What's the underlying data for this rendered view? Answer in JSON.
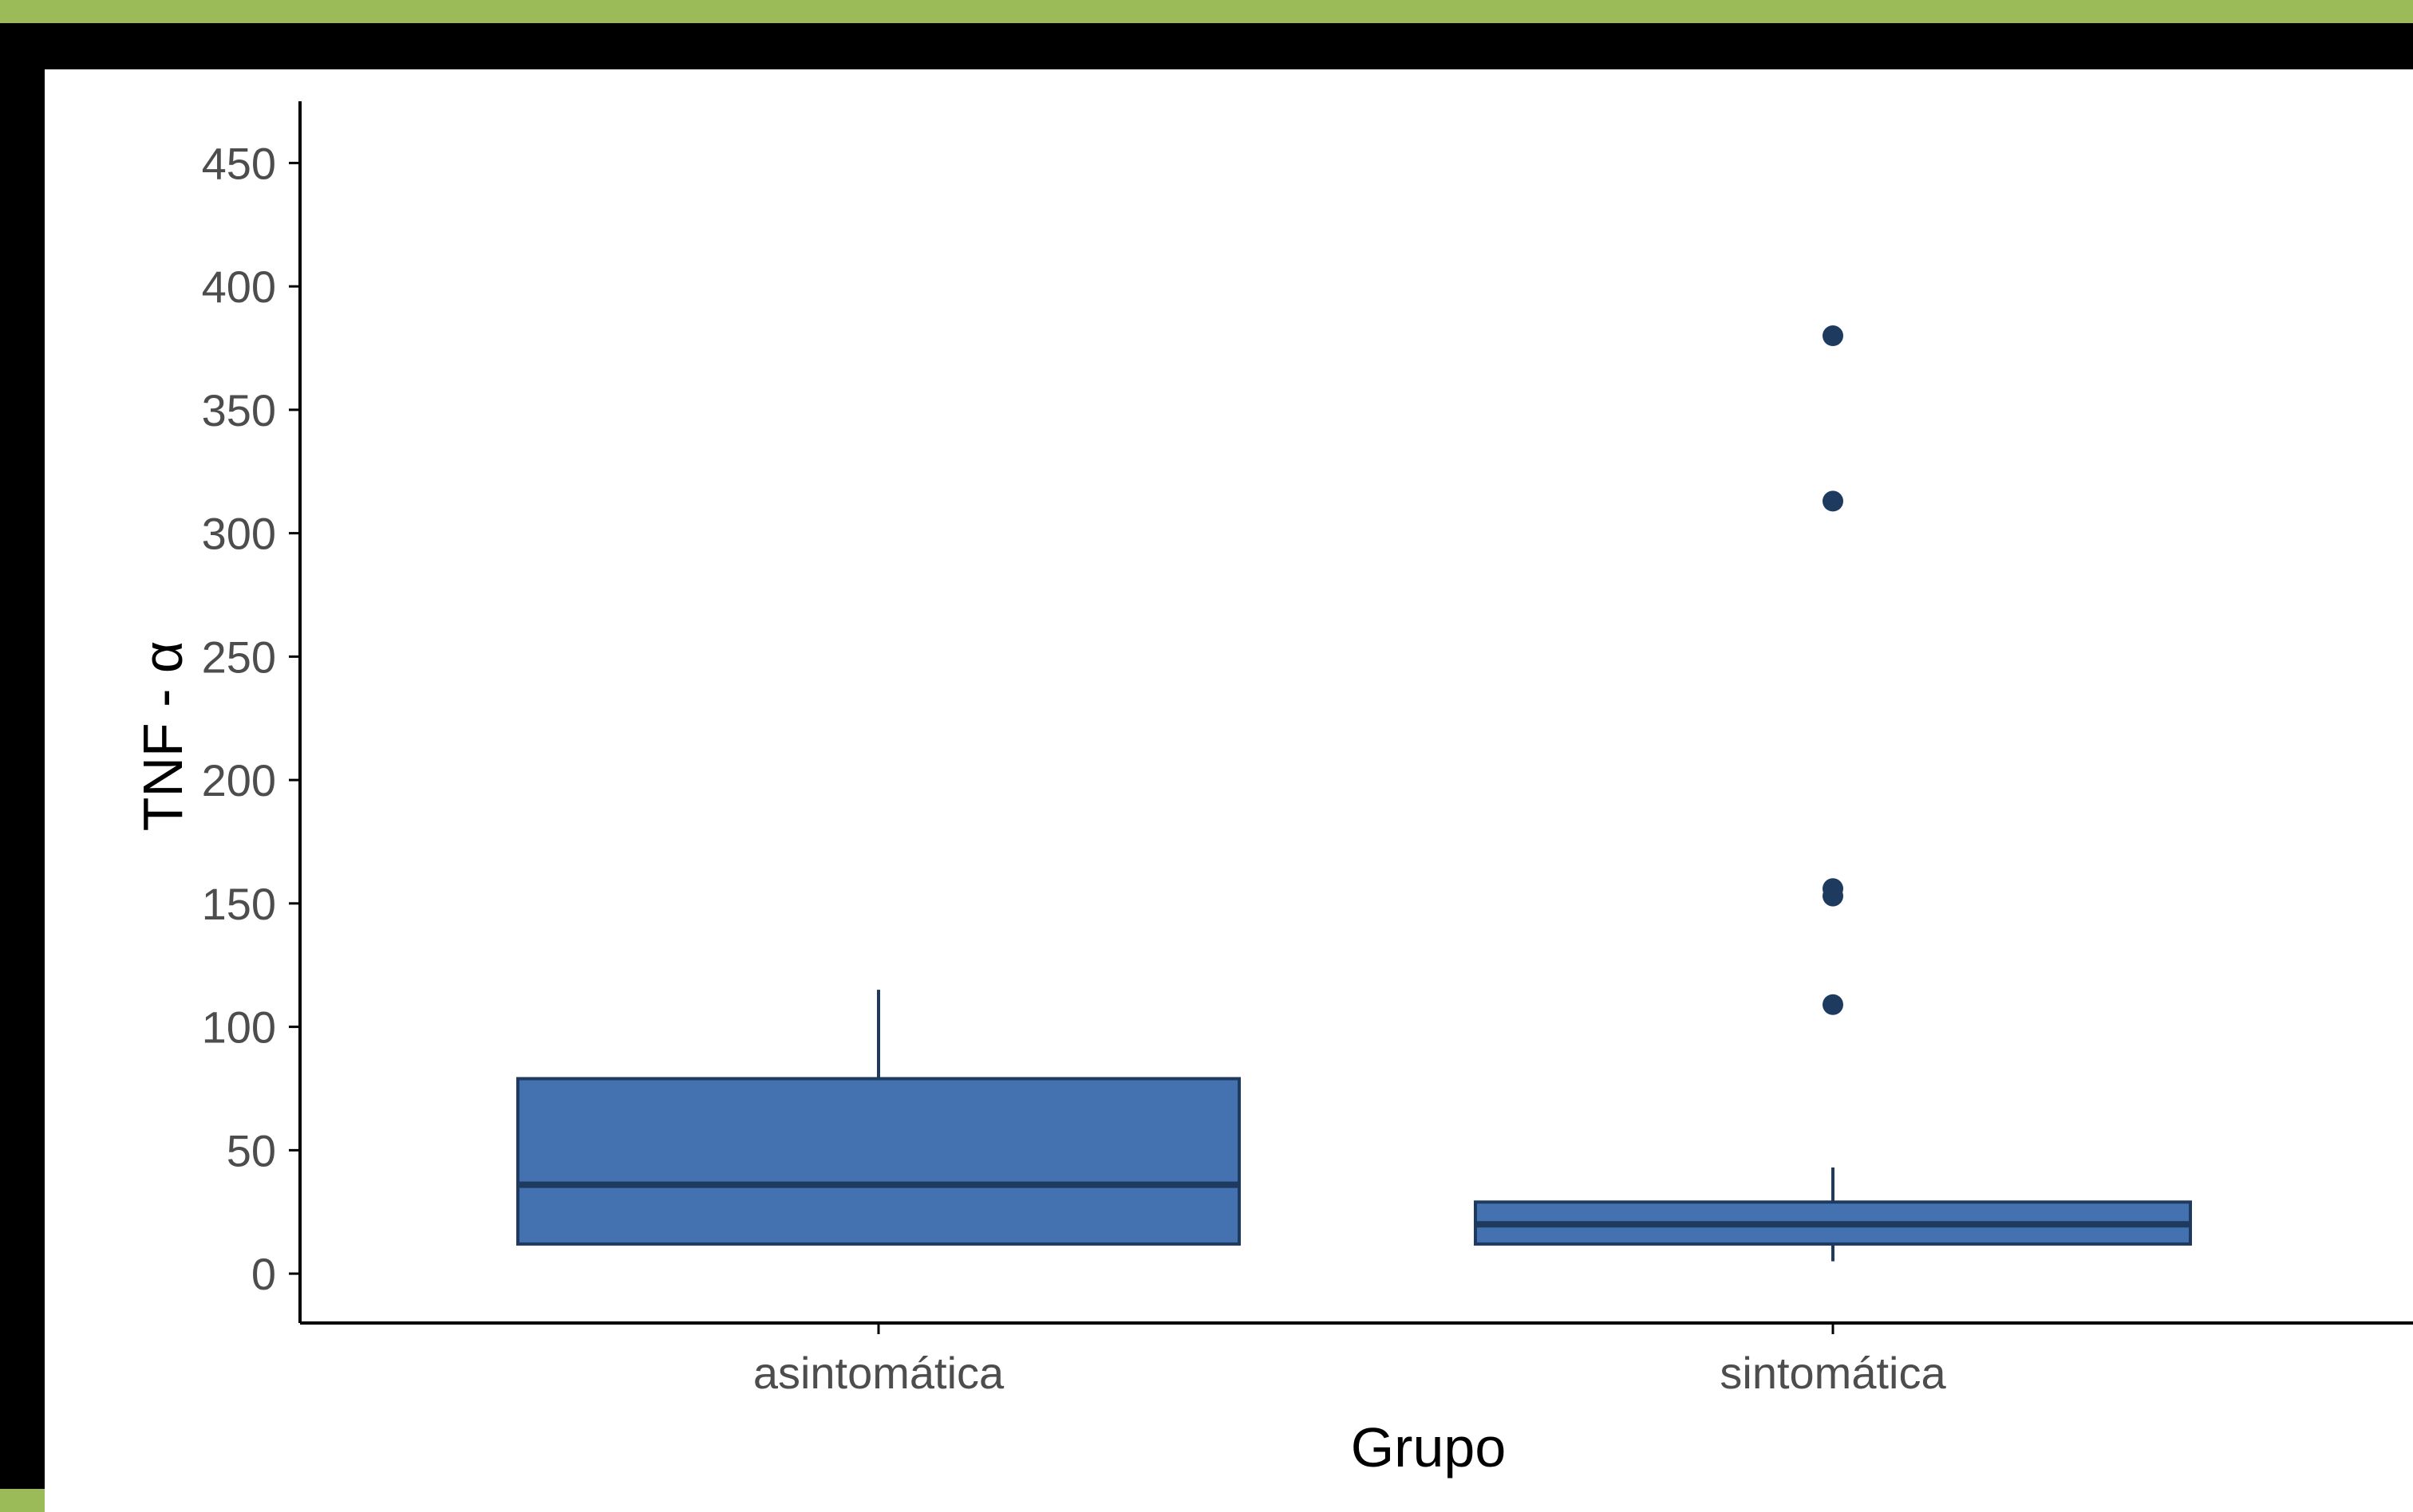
{
  "chart_data": {
    "type": "boxplot",
    "xlabel": "Grupo",
    "ylabel": "TNF - α",
    "ylim": [
      -20,
      475
    ],
    "yticks": [
      0,
      50,
      100,
      150,
      200,
      250,
      300,
      350,
      400,
      450
    ],
    "categories": [
      "asintomática",
      "sintomática"
    ],
    "boxes": [
      {
        "category": "asintomática",
        "whisker_low": 12,
        "q1": 12,
        "median": 36,
        "q3": 79,
        "whisker_high": 115,
        "outliers": []
      },
      {
        "category": "sintomática",
        "whisker_low": 5,
        "q1": 12,
        "median": 20,
        "q3": 29,
        "whisker_high": 43,
        "outliers": [
          109,
          153,
          156,
          313,
          380
        ]
      }
    ],
    "grid": false,
    "legend": "none",
    "colors": {
      "box_fill": "#4472b0",
      "box_stroke": "#1f3a5f",
      "outlier": "#1f3a5f",
      "axis": "#000000",
      "tick_text": "#4d4d4d",
      "frame_outer": "#9bbb59",
      "frame_inner": "#000000"
    }
  }
}
